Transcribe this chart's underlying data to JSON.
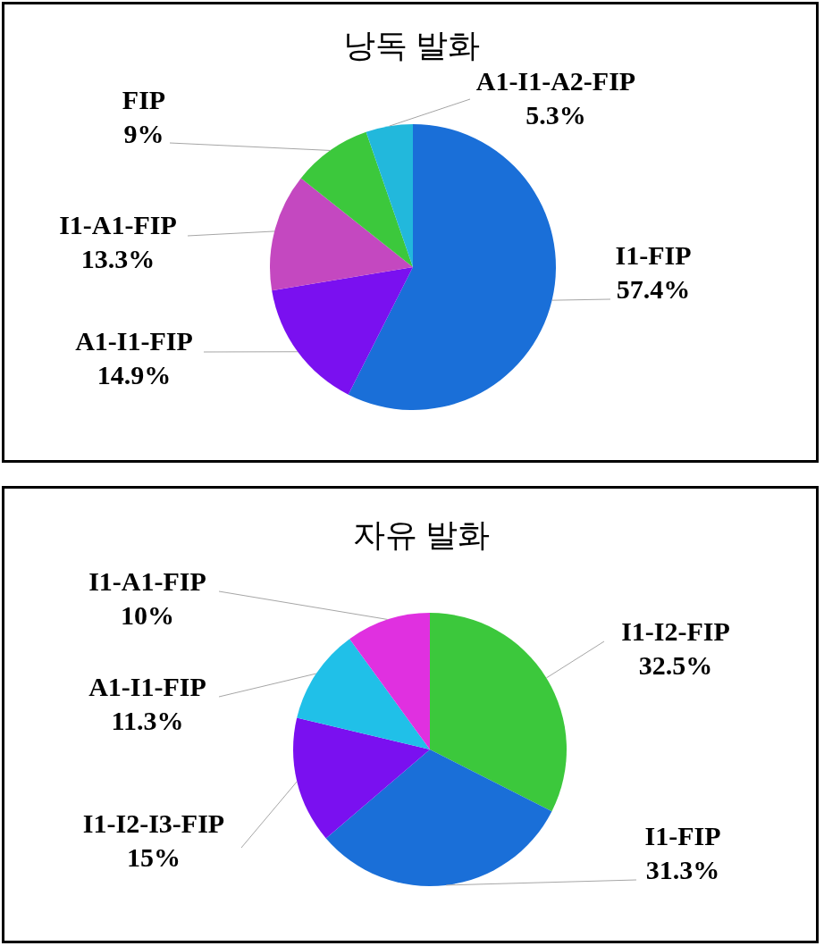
{
  "chart_data": [
    {
      "type": "pie",
      "title": "낭독 발화",
      "categories": [
        "I1-FIP",
        "A1-I1-FIP",
        "I1-A1-FIP",
        "FIP",
        "A1-I1-A2-FIP"
      ],
      "values": [
        57.4,
        14.9,
        13.3,
        9,
        5.3
      ],
      "value_labels": [
        "57.4%",
        "14.9%",
        "13.3%",
        "9%",
        "5.3%"
      ],
      "colors": [
        "#1a6fd8",
        "#7a10f0",
        "#c448c0",
        "#3cc83c",
        "#22b8dc"
      ]
    },
    {
      "type": "pie",
      "title": "자유 발화",
      "categories": [
        "I1-I2-FIP",
        "I1-FIP",
        "I1-I2-I3-FIP",
        "A1-I1-FIP",
        "I1-A1-FIP"
      ],
      "values": [
        32.5,
        31.3,
        15,
        11.3,
        10
      ],
      "value_labels": [
        "32.5%",
        "31.3%",
        "15%",
        "11.3%",
        "10%"
      ],
      "colors": [
        "#3cc83c",
        "#1a6fd8",
        "#7a10f0",
        "#20c0e8",
        "#e030e0"
      ]
    }
  ]
}
